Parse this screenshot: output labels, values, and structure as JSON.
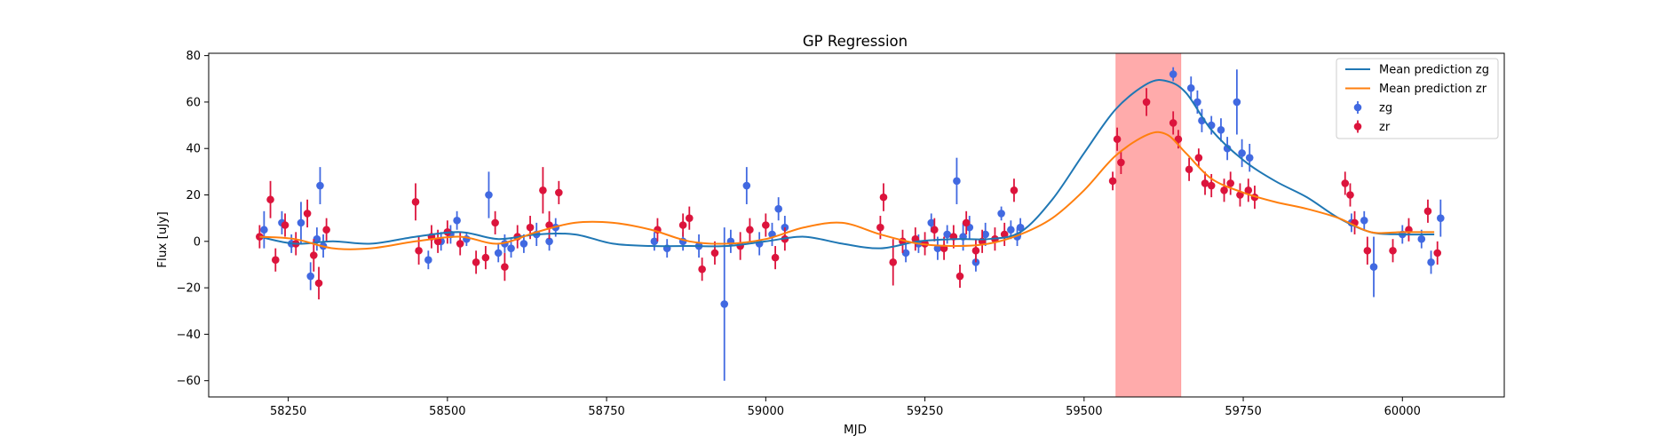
{
  "chart_data": {
    "type": "scatter",
    "title": "GP Regression",
    "xlabel": "MJD",
    "ylabel": "Flux [uJy]",
    "xlim": [
      58125,
      60160
    ],
    "ylim": [
      -67,
      81
    ],
    "x_ticks": [
      58250,
      58500,
      58750,
      59000,
      59250,
      59500,
      59750,
      60000
    ],
    "y_ticks": [
      -60,
      -40,
      -20,
      0,
      20,
      40,
      60,
      80
    ],
    "legend_position": "top-right",
    "highlight_band": {
      "x_start": 59550,
      "x_end": 59652,
      "color": "#ff0000",
      "opacity": 0.33
    },
    "colors": {
      "zg_line": "#1f77b4",
      "zr_line": "#ff7f0e",
      "zg_points": "#4169e1",
      "zr_points": "#dc143c"
    },
    "series": [
      {
        "name": "Mean prediction zg",
        "kind": "line",
        "x": [
          58205,
          58260,
          58320,
          58380,
          58450,
          58520,
          58580,
          58640,
          58700,
          58760,
          58820,
          58880,
          58940,
          59000,
          59060,
          59120,
          59180,
          59240,
          59300,
          59350,
          59400,
          59450,
          59500,
          59550,
          59600,
          59630,
          59660,
          59700,
          59750,
          59800,
          59850,
          59900,
          59950,
          60000,
          60050
        ],
        "y": [
          2,
          -1,
          0,
          -1,
          2,
          4,
          1,
          3,
          3,
          -1,
          -2,
          -2,
          -2,
          0,
          2,
          -1,
          -3,
          0,
          1,
          1,
          4,
          18,
          38,
          57,
          68,
          69,
          64,
          48,
          35,
          26,
          19,
          10,
          4,
          3,
          3
        ]
      },
      {
        "name": "Mean prediction zr",
        "kind": "line",
        "x": [
          58205,
          58260,
          58320,
          58380,
          58450,
          58520,
          58580,
          58640,
          58700,
          58760,
          58820,
          58880,
          58940,
          59000,
          59060,
          59120,
          59180,
          59240,
          59300,
          59350,
          59400,
          59450,
          59500,
          59550,
          59600,
          59630,
          59660,
          59700,
          59750,
          59800,
          59850,
          59900,
          59950,
          60000,
          60050
        ],
        "y": [
          2,
          1,
          -3,
          -3,
          0,
          2,
          -1,
          4,
          8,
          8,
          5,
          0,
          -1,
          1,
          6,
          8,
          3,
          -1,
          -2,
          -1,
          3,
          10,
          22,
          37,
          46,
          46,
          38,
          27,
          21,
          17,
          14,
          10,
          4,
          4,
          4
        ]
      },
      {
        "name": "zg",
        "kind": "errorbar",
        "x": [
          58212,
          58240,
          58255,
          58270,
          58285,
          58295,
          58300,
          58305,
          58470,
          58490,
          58505,
          58515,
          58530,
          58565,
          58580,
          58590,
          58600,
          58620,
          58640,
          58660,
          58670,
          58825,
          58845,
          58870,
          58895,
          58935,
          58945,
          58970,
          58990,
          59010,
          59020,
          59030,
          59220,
          59240,
          59260,
          59270,
          59285,
          59300,
          59310,
          59320,
          59330,
          59345,
          59370,
          59385,
          59395,
          59400,
          59640,
          59668,
          59678,
          59685,
          59700,
          59715,
          59725,
          59740,
          59748,
          59760,
          59920,
          59940,
          59955,
          60000,
          60030,
          60045,
          60060
        ],
        "y": [
          5,
          8,
          -1,
          8,
          -15,
          1,
          24,
          -2,
          -8,
          0,
          3,
          9,
          1,
          20,
          -5,
          -1,
          -3,
          -1,
          3,
          0,
          6,
          0,
          -3,
          0,
          -2,
          -27,
          0,
          24,
          -1,
          3,
          14,
          6,
          -5,
          -1,
          8,
          -3,
          3,
          26,
          2,
          6,
          -9,
          3,
          12,
          5,
          2,
          6,
          72,
          66,
          60,
          52,
          50,
          48,
          40,
          60,
          38,
          36,
          8,
          9,
          -11,
          3,
          1,
          -9,
          10
        ],
        "err": [
          8,
          5,
          4,
          9,
          6,
          5,
          8,
          5,
          4,
          4,
          4,
          4,
          3,
          10,
          4,
          4,
          4,
          4,
          5,
          4,
          4,
          4,
          4,
          4,
          5,
          33,
          5,
          8,
          5,
          5,
          5,
          5,
          4,
          4,
          4,
          5,
          4,
          10,
          6,
          5,
          4,
          5,
          3,
          4,
          4,
          4,
          3,
          5,
          5,
          5,
          4,
          5,
          5,
          14,
          6,
          6,
          4,
          4,
          13,
          4,
          4,
          5,
          8
        ]
      },
      {
        "name": "zr",
        "kind": "errorbar",
        "x": [
          58205,
          58222,
          58230,
          58245,
          58262,
          58280,
          58290,
          58298,
          58310,
          58450,
          58455,
          58475,
          58485,
          58500,
          58520,
          58545,
          58560,
          58575,
          58590,
          58610,
          58630,
          58650,
          58660,
          58675,
          58830,
          58870,
          58880,
          58900,
          58920,
          58960,
          58975,
          59000,
          59015,
          59030,
          59180,
          59185,
          59200,
          59215,
          59235,
          59250,
          59265,
          59280,
          59295,
          59305,
          59315,
          59330,
          59340,
          59360,
          59375,
          59390,
          59545,
          59552,
          59558,
          59598,
          59640,
          59648,
          59665,
          59680,
          59690,
          59700,
          59720,
          59730,
          59745,
          59758,
          59768,
          59910,
          59918,
          59925,
          59945,
          59985,
          60010,
          60040,
          60055
        ],
        "y": [
          2,
          18,
          -8,
          7,
          -1,
          12,
          -6,
          -18,
          5,
          17,
          -4,
          2,
          0,
          4,
          -1,
          -9,
          -7,
          8,
          -11,
          2,
          6,
          22,
          7,
          21,
          5,
          7,
          10,
          -12,
          -5,
          -2,
          5,
          7,
          -7,
          1,
          6,
          19,
          -9,
          0,
          1,
          -1,
          5,
          -3,
          2,
          -15,
          8,
          -4,
          0,
          1,
          3,
          22,
          26,
          44,
          34,
          60,
          51,
          44,
          31,
          36,
          25,
          24,
          22,
          25,
          20,
          22,
          19,
          25,
          20,
          8,
          -4,
          -4,
          5,
          13,
          -5
        ],
        "err": [
          5,
          8,
          5,
          5,
          5,
          6,
          7,
          7,
          5,
          8,
          6,
          5,
          5,
          5,
          5,
          5,
          5,
          5,
          6,
          5,
          5,
          10,
          6,
          5,
          5,
          5,
          5,
          5,
          5,
          6,
          5,
          5,
          5,
          5,
          5,
          6,
          10,
          5,
          5,
          5,
          5,
          5,
          5,
          5,
          5,
          5,
          5,
          5,
          5,
          5,
          4,
          5,
          5,
          6,
          5,
          4,
          5,
          4,
          5,
          5,
          5,
          5,
          5,
          5,
          5,
          5,
          5,
          5,
          6,
          5,
          5,
          5,
          5
        ]
      }
    ]
  }
}
